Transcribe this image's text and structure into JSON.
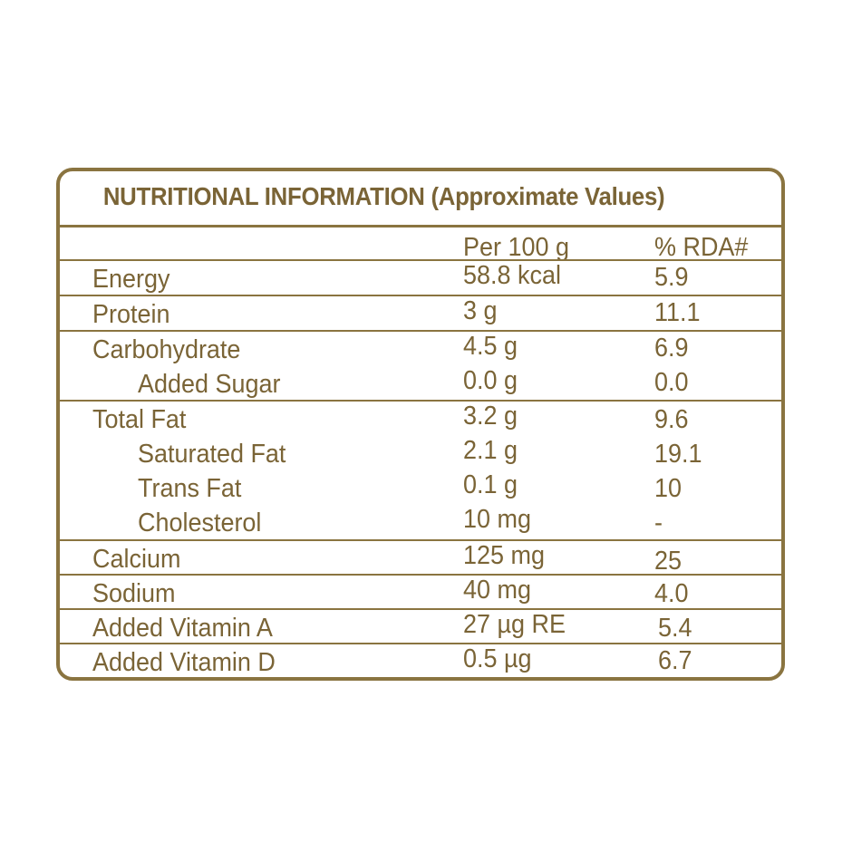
{
  "title": "NUTRITIONAL INFORMATION (Approximate Values)",
  "header": {
    "per": "Per 100 g",
    "rda": "% RDA#"
  },
  "rows": [
    {
      "name": "Energy",
      "per": "58.8 kcal",
      "rda": "5.9"
    },
    {
      "name": "Protein",
      "per": "3 g",
      "rda": "11.1"
    },
    {
      "name": "Carbohydrate",
      "per": "4.5 g",
      "rda": "6.9"
    },
    {
      "name": "Added Sugar",
      "per": "0.0 g",
      "rda": "0.0"
    },
    {
      "name": "Total Fat",
      "per": "3.2 g",
      "rda": "9.6"
    },
    {
      "name": "Saturated Fat",
      "per": "2.1 g",
      "rda": "19.1"
    },
    {
      "name": "Trans Fat",
      "per": "0.1 g",
      "rda": "10"
    },
    {
      "name": "Cholesterol",
      "per": "10 mg",
      "rda": "-"
    },
    {
      "name": "Calcium",
      "per": "125 mg",
      "rda": "25"
    },
    {
      "name": "Sodium",
      "per": "40 mg",
      "rda": "4.0"
    },
    {
      "name": "Added Vitamin A",
      "per": "27 µg RE",
      "rda": "5.4"
    },
    {
      "name": "Added Vitamin D",
      "per": "0.5 µg",
      "rda": "6.7"
    }
  ],
  "colors": {
    "border": "#8a7440",
    "text": "#7a6436"
  }
}
